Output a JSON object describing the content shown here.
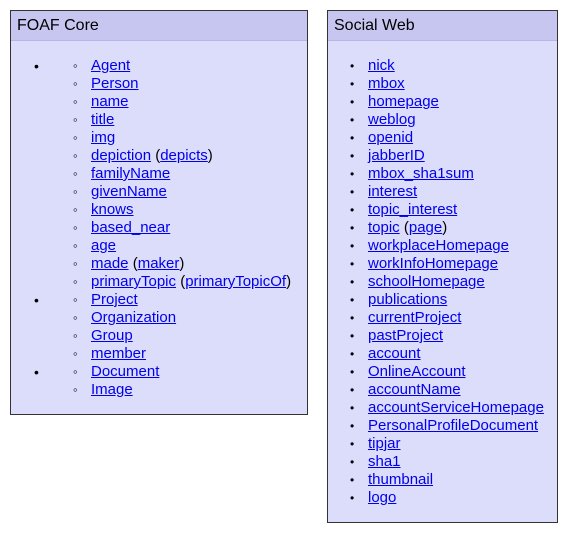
{
  "core": {
    "title": "FOAF Core",
    "groups": [
      {
        "items": [
          {
            "label": "Agent"
          },
          {
            "label": "Person"
          },
          {
            "label": "name"
          },
          {
            "label": "title"
          },
          {
            "label": "img"
          },
          {
            "label": "depiction",
            "alt": "depicts"
          },
          {
            "label": "familyName"
          },
          {
            "label": "givenName"
          },
          {
            "label": "knows"
          },
          {
            "label": "based_near"
          },
          {
            "label": "age"
          },
          {
            "label": "made",
            "alt": "maker"
          },
          {
            "label": "primaryTopic",
            "alt": "primaryTopicOf"
          }
        ]
      },
      {
        "items": [
          {
            "label": "Project"
          },
          {
            "label": "Organization"
          },
          {
            "label": "Group"
          },
          {
            "label": "member"
          }
        ]
      },
      {
        "items": [
          {
            "label": "Document"
          },
          {
            "label": "Image"
          }
        ]
      }
    ]
  },
  "social": {
    "title": "Social Web",
    "items": [
      {
        "label": "nick"
      },
      {
        "label": "mbox"
      },
      {
        "label": "homepage"
      },
      {
        "label": "weblog"
      },
      {
        "label": "openid"
      },
      {
        "label": "jabberID"
      },
      {
        "label": "mbox_sha1sum"
      },
      {
        "label": "interest"
      },
      {
        "label": "topic_interest"
      },
      {
        "label": "topic",
        "alt": "page"
      },
      {
        "label": "workplaceHomepage"
      },
      {
        "label": "workInfoHomepage"
      },
      {
        "label": "schoolHomepage"
      },
      {
        "label": "publications"
      },
      {
        "label": "currentProject"
      },
      {
        "label": "pastProject"
      },
      {
        "label": "account"
      },
      {
        "label": "OnlineAccount"
      },
      {
        "label": "accountName"
      },
      {
        "label": "accountServiceHomepage"
      },
      {
        "label": "PersonalProfileDocument"
      },
      {
        "label": "tipjar"
      },
      {
        "label": "sha1"
      },
      {
        "label": "thumbnail"
      },
      {
        "label": "logo"
      }
    ]
  },
  "bullets": {
    "outer": "•",
    "inner": "◦",
    "filled": "•"
  }
}
